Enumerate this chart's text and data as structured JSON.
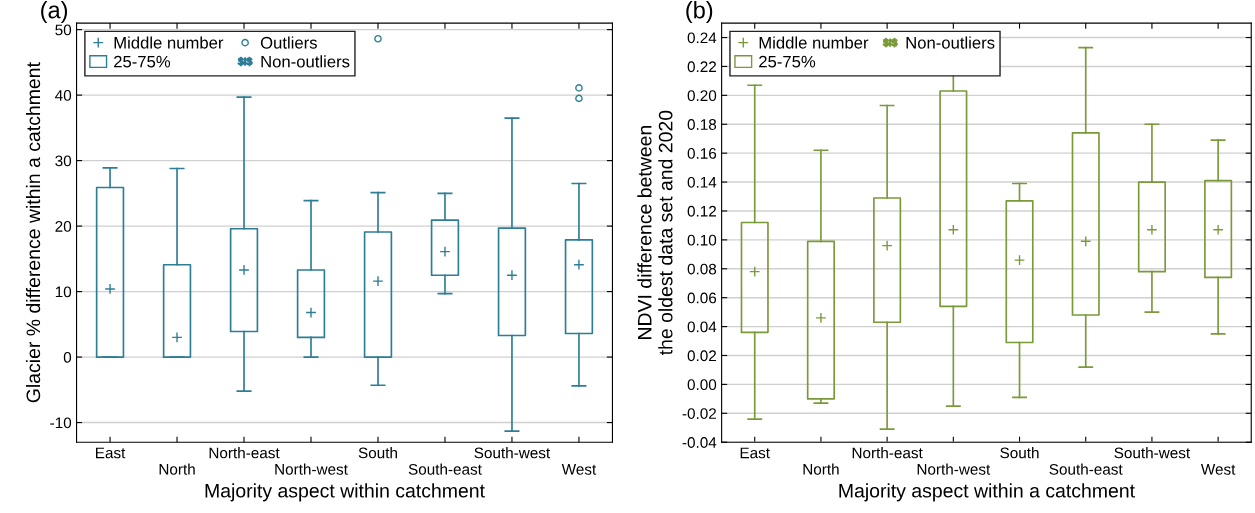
{
  "chart_data": [
    {
      "type": "box",
      "xlabel": "Majority aspect within catchment",
      "ylabel": "Glacier % difference within a catchment",
      "categories": [
        "East",
        "North",
        "North-east",
        "North-west",
        "South",
        "South-east",
        "South-west",
        "West"
      ],
      "color": "#2e7d96",
      "ylim": [
        -13,
        51
      ],
      "yticks": [
        -10,
        0,
        10,
        20,
        30,
        40,
        50
      ],
      "grid": "y",
      "marker": "cross",
      "annotations": [
        "(a)",
        "Middle number",
        "Outliers",
        "25-75%",
        "Non-outliers"
      ],
      "boxes": [
        {
          "low": 0,
          "q1": 0,
          "median": 10.4,
          "q3": 25.9,
          "high": 28.9
        },
        {
          "low": 0,
          "q1": 0,
          "median": 3.0,
          "q3": 14.1,
          "high": 28.8
        },
        {
          "low": -5.2,
          "q1": 3.9,
          "median": 13.3,
          "q3": 19.6,
          "high": 39.7
        },
        {
          "low": 0,
          "q1": 3.0,
          "median": 6.8,
          "q3": 13.3,
          "high": 23.9
        },
        {
          "low": -4.3,
          "q1": 0,
          "median": 11.6,
          "q3": 19.1,
          "high": 25.1,
          "outliers": [
            48.6
          ]
        },
        {
          "low": 9.7,
          "q1": 12.5,
          "median": 16.1,
          "q3": 20.9,
          "high": 25.0
        },
        {
          "low": -11.3,
          "q1": 3.3,
          "median": 12.5,
          "q3": 19.7,
          "high": 36.5
        },
        {
          "low": -4.4,
          "q1": 3.6,
          "median": 14.1,
          "q3": 17.9,
          "high": 26.5,
          "outliers": [
            41.1,
            39.5
          ]
        }
      ]
    },
    {
      "type": "box",
      "xlabel": "Majority aspect within a catchment",
      "ylabel": "NDVI difference between\nthe oldest data set and 2020",
      "categories": [
        "East",
        "North",
        "North-east",
        "North-west",
        "South",
        "South-east",
        "South-west",
        "West"
      ],
      "color": "#7a9a3a",
      "ylim": [
        -0.04,
        0.25
      ],
      "yticks": [
        {
          "value": -0.04,
          "label": "-0.04"
        },
        {
          "value": -0.02,
          "label": "-0.02"
        },
        {
          "value": 0,
          "label": "0.00"
        },
        {
          "value": 0.02,
          "label": "0.02"
        },
        {
          "value": 0.04,
          "label": "0.04"
        },
        {
          "value": 0.06,
          "label": "0.06"
        },
        {
          "value": 0.08,
          "label": "0.08"
        },
        {
          "value": 0.1,
          "label": "0.10"
        },
        {
          "value": 0.12,
          "label": "0.12"
        },
        {
          "value": 0.14,
          "label": "0.14"
        },
        {
          "value": 0.16,
          "label": "0.16"
        },
        {
          "value": 0.18,
          "label": "0.18"
        },
        {
          "value": 0.2,
          "label": "0.20"
        },
        {
          "value": 0.22,
          "label": "0.22"
        },
        {
          "value": 0.24,
          "label": "0.24"
        }
      ],
      "grid": "y",
      "marker": "cross",
      "annotations": [
        "(b)",
        "Middle number",
        "25-75%",
        "Non-outliers"
      ],
      "boxes": [
        {
          "low": -0.024,
          "q1": 0.036,
          "median": 0.078,
          "q3": 0.112,
          "high": 0.207
        },
        {
          "low": -0.013,
          "q1": -0.01,
          "median": 0.046,
          "q3": 0.099,
          "high": 0.162
        },
        {
          "low": -0.031,
          "q1": 0.043,
          "median": 0.096,
          "q3": 0.129,
          "high": 0.193
        },
        {
          "low": -0.015,
          "q1": 0.054,
          "median": 0.107,
          "q3": 0.203,
          "high": 0.24
        },
        {
          "low": -0.009,
          "q1": 0.029,
          "median": 0.086,
          "q3": 0.127,
          "high": 0.139
        },
        {
          "low": 0.012,
          "q1": 0.048,
          "median": 0.099,
          "q3": 0.174,
          "high": 0.233
        },
        {
          "low": 0.05,
          "q1": 0.078,
          "median": 0.107,
          "q3": 0.14,
          "high": 0.18
        },
        {
          "low": 0.035,
          "q1": 0.074,
          "median": 0.107,
          "q3": 0.141,
          "high": 0.169
        }
      ]
    }
  ]
}
